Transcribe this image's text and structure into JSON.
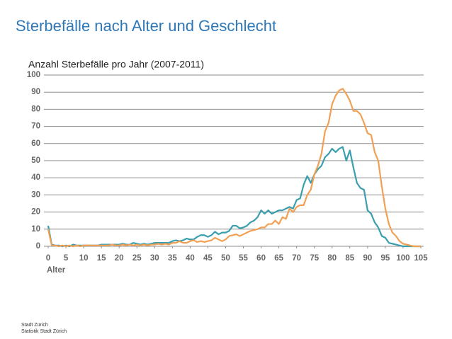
{
  "title": "Sterbefälle nach Alter und Geschlecht",
  "chart_data": {
    "type": "line",
    "subtitle": "Anzahl Sterbefälle pro Jahr (2007-2011)",
    "x_label": "Alter",
    "x": [
      0,
      1,
      2,
      3,
      4,
      5,
      6,
      7,
      8,
      9,
      10,
      11,
      12,
      13,
      14,
      15,
      16,
      17,
      18,
      19,
      20,
      21,
      22,
      23,
      24,
      25,
      26,
      27,
      28,
      29,
      30,
      31,
      32,
      33,
      34,
      35,
      36,
      37,
      38,
      39,
      40,
      41,
      42,
      43,
      44,
      45,
      46,
      47,
      48,
      49,
      50,
      51,
      52,
      53,
      54,
      55,
      56,
      57,
      58,
      59,
      60,
      61,
      62,
      63,
      64,
      65,
      66,
      67,
      68,
      69,
      70,
      71,
      72,
      73,
      74,
      75,
      76,
      77,
      78,
      79,
      80,
      81,
      82,
      83,
      84,
      85,
      86,
      87,
      88,
      89,
      90,
      91,
      92,
      93,
      94,
      95,
      96,
      97,
      98,
      99,
      100,
      101,
      102,
      103,
      104,
      105
    ],
    "series": [
      {
        "color": "#3a9eae",
        "values": [
          12,
          1,
          0.5,
          0.5,
          0,
          0.5,
          0,
          1,
          0.5,
          0.5,
          0.5,
          0.5,
          0.5,
          0.5,
          0.5,
          1,
          1,
          1,
          1,
          1,
          1,
          1.5,
          1,
          1,
          2,
          1.5,
          1,
          1.5,
          1,
          1.5,
          2,
          2,
          2,
          2,
          2,
          3,
          3.5,
          3,
          3.5,
          4.5,
          4,
          4,
          5.5,
          6.5,
          6.5,
          5.5,
          6.5,
          8.5,
          7,
          8,
          8,
          9,
          12,
          12,
          10.5,
          11,
          12,
          14,
          15,
          17,
          21,
          19,
          21,
          19,
          20,
          21,
          21,
          22,
          23,
          22,
          27,
          28,
          36,
          41,
          37,
          42,
          45,
          47,
          52,
          54,
          57,
          55,
          57,
          58,
          50,
          56,
          46,
          37,
          34,
          33,
          21,
          19,
          14,
          11,
          6,
          5,
          2,
          1.5,
          1,
          0.5,
          0,
          0,
          0,
          0,
          0,
          0
        ]
      },
      {
        "color": "#f2a054",
        "values": [
          10,
          0.5,
          0.5,
          0,
          0.5,
          0,
          0.5,
          0,
          0.5,
          0,
          0.5,
          0.5,
          0.5,
          0.5,
          0.5,
          0.5,
          0.5,
          0.5,
          1,
          0.5,
          0.5,
          1,
          0.5,
          1,
          0.5,
          1,
          0.5,
          1,
          0.5,
          1,
          1,
          1.5,
          1,
          1.5,
          1,
          2,
          2,
          3,
          2,
          2,
          3,
          3.5,
          2.5,
          3,
          2.5,
          3,
          3.5,
          5,
          4,
          3,
          4,
          6,
          6.5,
          7,
          6,
          7,
          8,
          9,
          9.5,
          10,
          11,
          11,
          13,
          13,
          15,
          13,
          17,
          16,
          22,
          20,
          23,
          24,
          24,
          30,
          33,
          42,
          47,
          54,
          67,
          72,
          83,
          88,
          91,
          92,
          89,
          85,
          79,
          79,
          77,
          72,
          66,
          65,
          55,
          50,
          35,
          22,
          13,
          8,
          6,
          3,
          1.5,
          1,
          0.5,
          0,
          0,
          0
        ]
      }
    ],
    "xlim": [
      0,
      105
    ],
    "xticks": [
      0,
      5,
      10,
      15,
      20,
      25,
      30,
      35,
      40,
      45,
      50,
      55,
      60,
      65,
      70,
      75,
      80,
      85,
      90,
      95,
      100,
      105
    ],
    "ylim": [
      0,
      100
    ],
    "yticks": [
      0,
      10,
      20,
      30,
      40,
      50,
      60,
      70,
      80,
      90,
      100
    ],
    "grid": true
  },
  "footer": [
    "Stadt Zürich",
    "Statistik Stadt Zürich"
  ]
}
